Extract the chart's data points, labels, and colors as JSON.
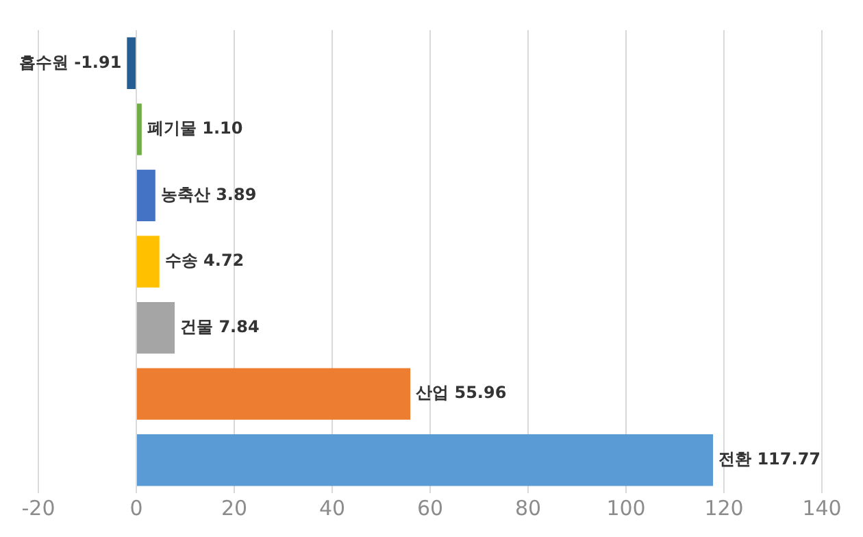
{
  "chart_data": {
    "type": "bar",
    "orientation": "horizontal",
    "categories": [
      "흡수원",
      "폐기물",
      "농축산",
      "수송",
      "건물",
      "산업",
      "전환"
    ],
    "values": [
      -1.91,
      1.1,
      3.89,
      4.72,
      7.84,
      55.96,
      117.77
    ],
    "colors": [
      "#255e91",
      "#70ad47",
      "#4472c4",
      "#ffc000",
      "#a5a5a5",
      "#ed7d31",
      "#5b9bd5"
    ],
    "value_labels": [
      "-1.91",
      "1.10",
      "3.89",
      "4.72",
      "7.84",
      "55.96",
      "117.77"
    ],
    "xlim": [
      -20,
      140
    ],
    "xticks": [
      -20,
      0,
      20,
      40,
      60,
      80,
      100,
      120,
      140
    ],
    "grid": "x",
    "tick_labels": "x",
    "legend": false
  }
}
